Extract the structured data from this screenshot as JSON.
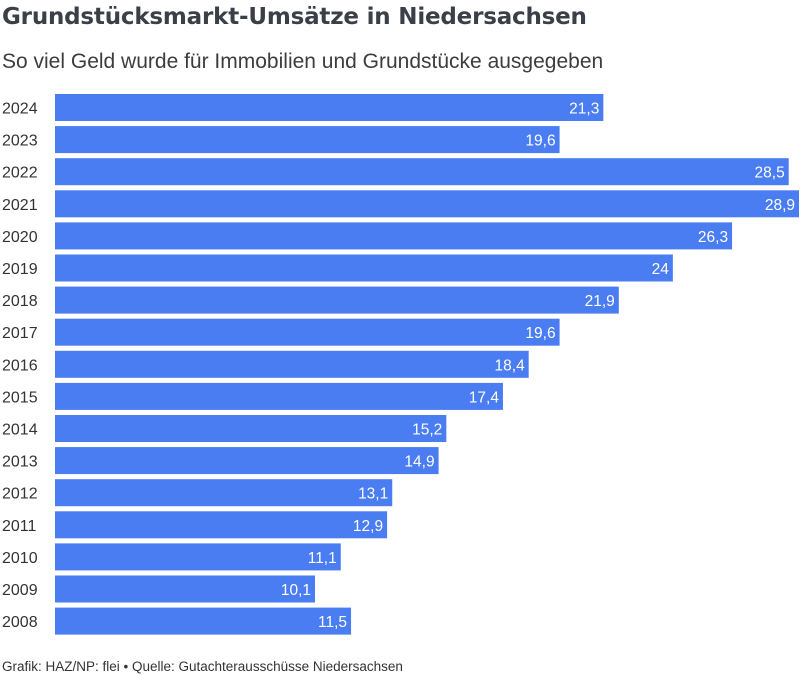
{
  "chart_data": {
    "type": "bar",
    "orientation": "horizontal",
    "title": "Grundstücksmarkt-Umsätze in Niedersachsen",
    "subtitle": "So viel Geld wurde für Immobilien und Grundstücke ausgegeben",
    "categories": [
      "2024",
      "2023",
      "2022",
      "2021",
      "2020",
      "2019",
      "2018",
      "2017",
      "2016",
      "2015",
      "2014",
      "2013",
      "2012",
      "2011",
      "2010",
      "2009",
      "2008"
    ],
    "values": [
      21.3,
      19.6,
      28.5,
      28.9,
      26.3,
      24,
      21.9,
      19.6,
      18.4,
      17.4,
      15.2,
      14.9,
      13.1,
      12.9,
      11.1,
      10.1,
      11.5
    ],
    "value_labels": [
      "21,3",
      "19,6",
      "28,5",
      "28,9",
      "26,3",
      "24",
      "21,9",
      "19,6",
      "18,4",
      "17,4",
      "15,2",
      "14,9",
      "13,1",
      "12,9",
      "11,1",
      "10,1",
      "11,5"
    ],
    "xlim": [
      0,
      28.9
    ],
    "bar_color": "#4a7cf2",
    "label_color": "#ffffff",
    "grid": false,
    "legend": "none"
  },
  "footer": "Grafik: HAZ/NP: flei • Quelle: Gutachterausschüsse Niedersachsen"
}
